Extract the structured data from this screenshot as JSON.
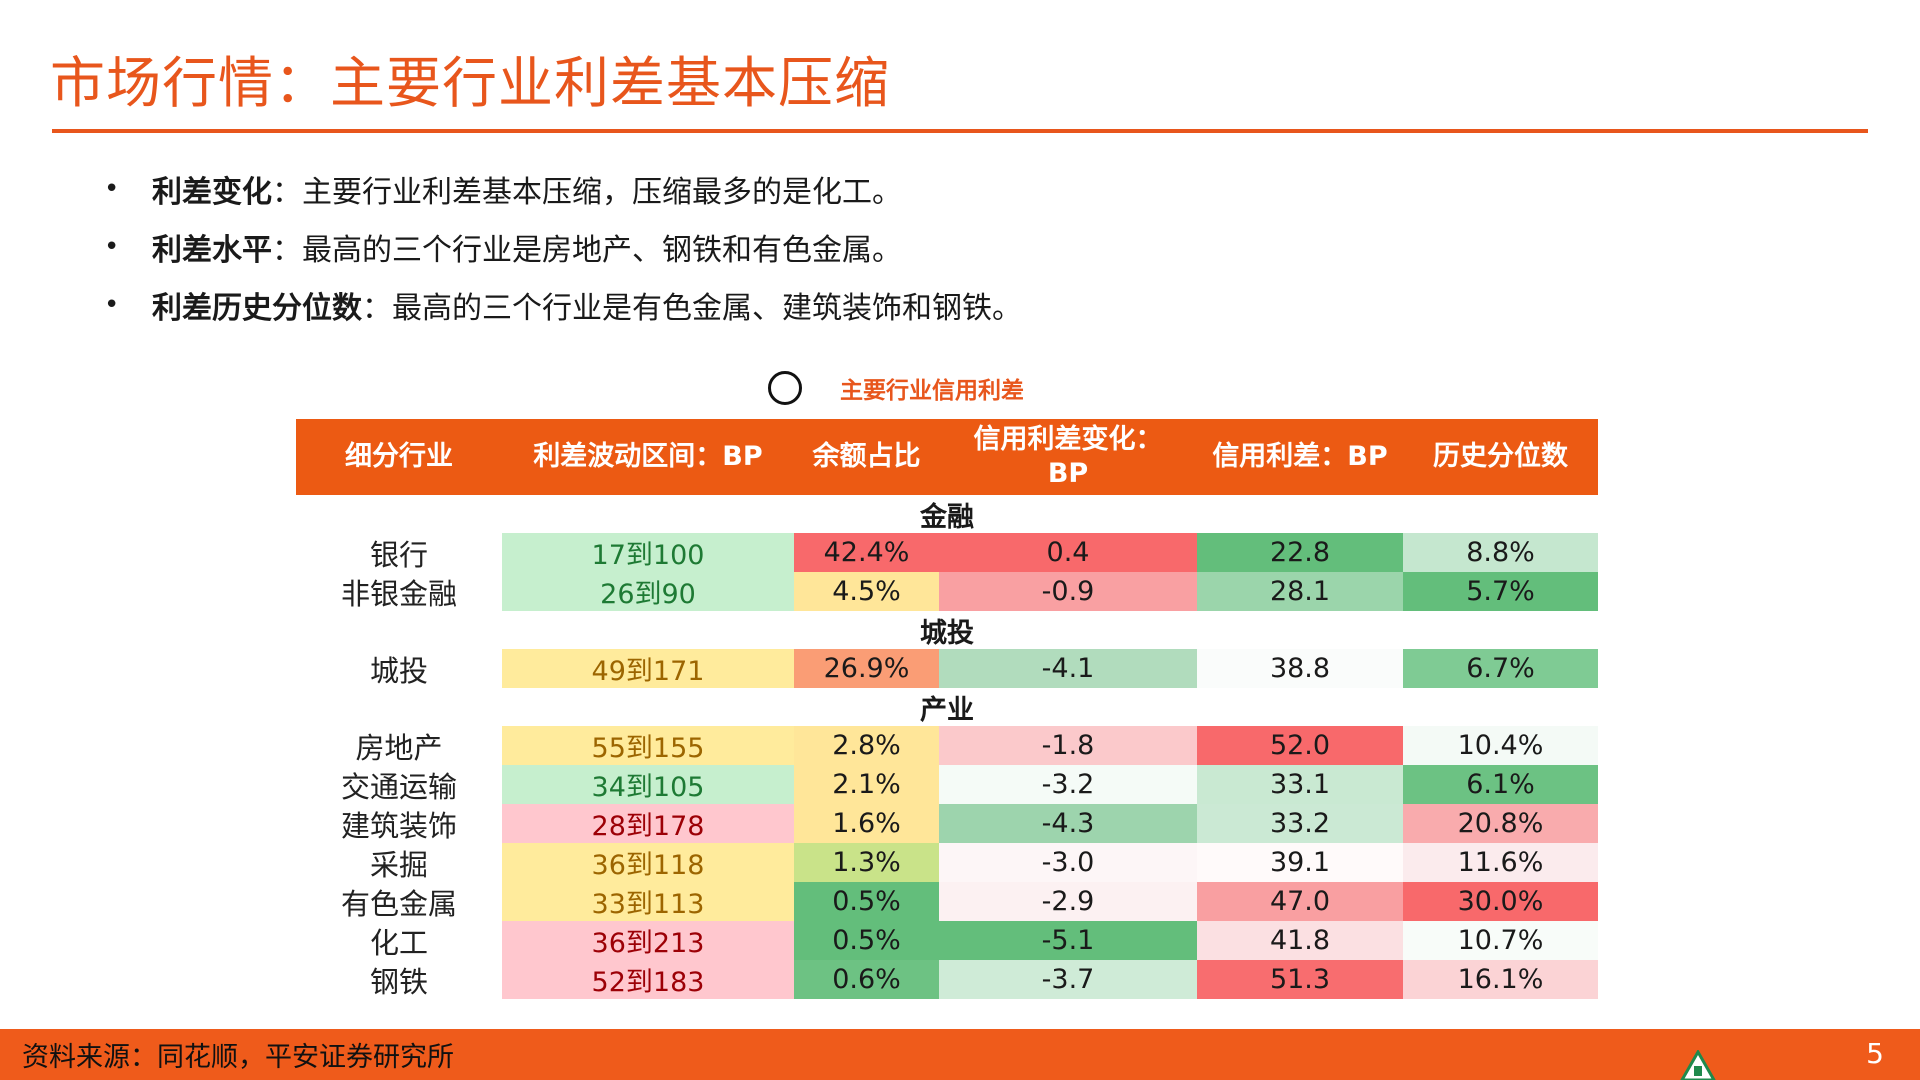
{
  "title": "市场行情：主要行业利差基本压缩",
  "bullets": [
    {
      "key": "利差变化",
      "text": "：主要行业利差基本压缩，压缩最多的是化工。"
    },
    {
      "key": "利差水平",
      "text": "：最高的三个行业是房地产、钢铁和有色金属。"
    },
    {
      "key": "利差历史分位数",
      "text": "：最高的三个行业是有色金属、建筑装饰和钢铁。"
    }
  ],
  "table": {
    "caption": "主要行业信用利差",
    "headers": [
      "细分行业",
      "利差波动区间：BP",
      "余额占比",
      "信用利差变化：BP",
      "信用利差：BP",
      "历史分位数"
    ],
    "groups": [
      {
        "name": "金融",
        "rows": [
          {
            "industry": "银行",
            "range": "17到100",
            "share": "42.4%",
            "change": "0.4",
            "spread": "22.8",
            "percentile": "8.8%",
            "colors": {
              "range": "#c6efce",
              "range_text": "#1e7a34",
              "share": "#f8696b",
              "change": "#f8696b",
              "spread": "#63be7b",
              "percentile": "#c5e7cf"
            }
          },
          {
            "industry": "非银金融",
            "range": "26到90",
            "share": "4.5%",
            "change": "-0.9",
            "spread": "28.1",
            "percentile": "5.7%",
            "colors": {
              "range": "#c6efce",
              "range_text": "#1e7a34",
              "share": "#ffe699",
              "change": "#f9a0a2",
              "spread": "#9bd5ab",
              "percentile": "#63be7b"
            }
          }
        ]
      },
      {
        "name": "城投",
        "rows": [
          {
            "industry": "城投",
            "range": "49到171",
            "share": "26.9%",
            "change": "-4.1",
            "spread": "38.8",
            "percentile": "6.7%",
            "colors": {
              "range": "#ffeb9c",
              "range_text": "#9c6500",
              "share": "#fa9d75",
              "change": "#b1dcbd",
              "spread": "#fafcfb",
              "percentile": "#7fcb94"
            }
          }
        ]
      },
      {
        "name": "产业",
        "rows": [
          {
            "industry": "房地产",
            "range": "55到155",
            "share": "2.8%",
            "change": "-1.8",
            "spread": "52.0",
            "percentile": "10.4%",
            "colors": {
              "range": "#ffeb9c",
              "range_text": "#9c6500",
              "share": "#ffe699",
              "change": "#fbc9cb",
              "spread": "#f8696b",
              "percentile": "#f4faf6"
            }
          },
          {
            "industry": "交通运输",
            "range": "34到105",
            "share": "2.1%",
            "change": "-3.2",
            "spread": "33.1",
            "percentile": "6.1%",
            "colors": {
              "range": "#c6efce",
              "range_text": "#1e7a34",
              "share": "#ffe699",
              "change": "#f5fbf7",
              "spread": "#c9e9d2",
              "percentile": "#6cc283"
            }
          },
          {
            "industry": "建筑装饰",
            "range": "28到178",
            "share": "1.6%",
            "change": "-4.3",
            "spread": "33.2",
            "percentile": "20.8%",
            "colors": {
              "range": "#ffc7ce",
              "range_text": "#9c0006",
              "share": "#ffe699",
              "change": "#9dd4ad",
              "spread": "#cbe9d4",
              "percentile": "#f9abad"
            }
          },
          {
            "industry": "采掘",
            "range": "36到118",
            "share": "1.3%",
            "change": "-3.0",
            "spread": "39.1",
            "percentile": "11.6%",
            "colors": {
              "range": "#ffeb9c",
              "range_text": "#9c6500",
              "share": "#c9e389",
              "change": "#fdf6f7",
              "spread": "#fffafa",
              "percentile": "#fbebed"
            }
          },
          {
            "industry": "有色金属",
            "range": "33到113",
            "share": "0.5%",
            "change": "-2.9",
            "spread": "47.0",
            "percentile": "30.0%",
            "colors": {
              "range": "#ffeb9c",
              "range_text": "#9c6500",
              "share": "#63be7b",
              "change": "#fcf1f2",
              "spread": "#f99fa1",
              "percentile": "#f8696b"
            }
          },
          {
            "industry": "化工",
            "range": "36到213",
            "share": "0.5%",
            "change": "-5.1",
            "spread": "41.8",
            "percentile": "10.7%",
            "colors": {
              "range": "#ffc7ce",
              "range_text": "#9c0006",
              "share": "#63be7b",
              "change": "#63be7b",
              "spread": "#fbe0e2",
              "percentile": "#f8fcf9"
            }
          },
          {
            "industry": "钢铁",
            "range": "52到183",
            "share": "0.6%",
            "change": "-3.7",
            "spread": "51.3",
            "percentile": "16.1%",
            "colors": {
              "range": "#ffc7ce",
              "range_text": "#9c0006",
              "share": "#6dc283",
              "change": "#cfebd7",
              "spread": "#f86d6f",
              "percentile": "#fbd3d5"
            }
          }
        ]
      }
    ]
  },
  "footer": {
    "source": "资料来源：同花顺，平安证券研究所",
    "page_number": "5"
  },
  "colors": {
    "accent": "#e8561c",
    "header_bg": "#ec5a13",
    "footer_bg": "#ef5b1b"
  }
}
